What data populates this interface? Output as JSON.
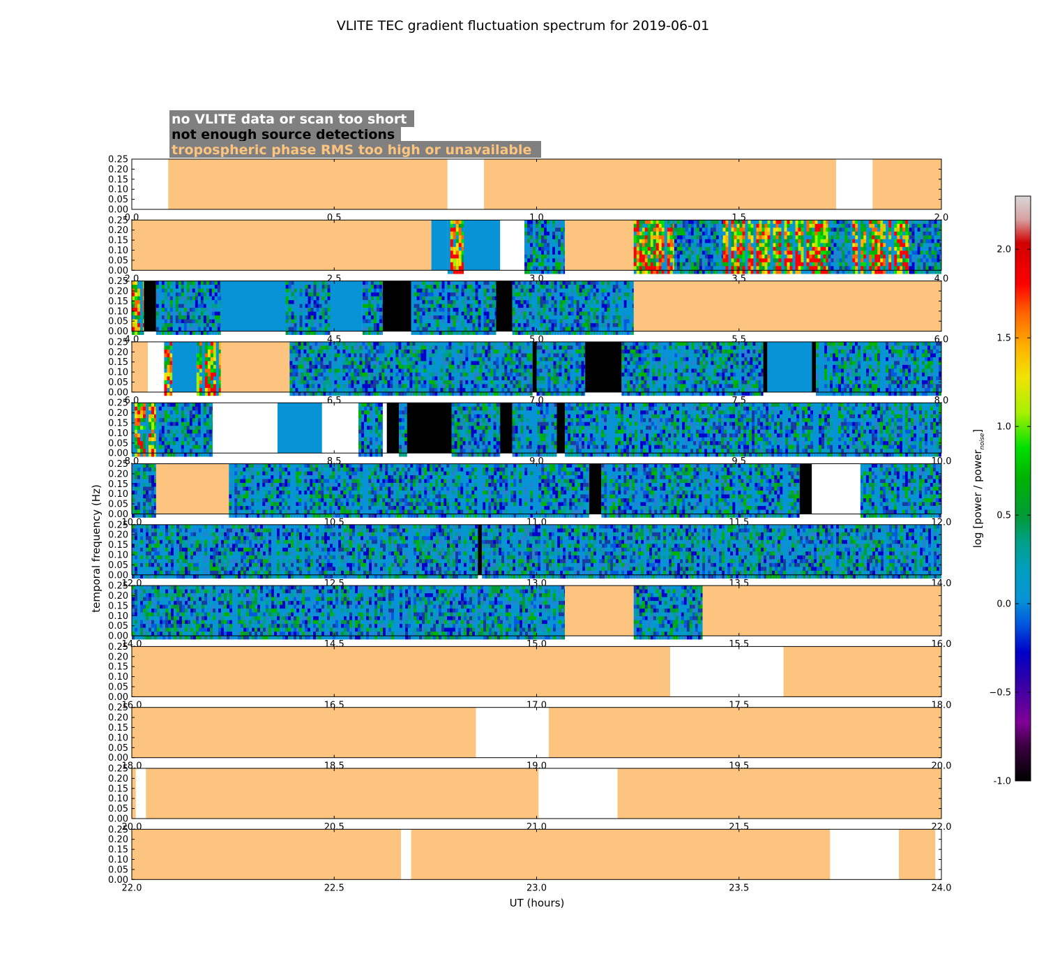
{
  "title": "VLITE TEC gradient fluctuation spectrum for 2019-06-01",
  "legend": {
    "items": [
      {
        "label": "no VLITE data or scan too short",
        "text_color": "#ffffff"
      },
      {
        "label": "not enough source detections",
        "text_color": "#000000"
      },
      {
        "label": "tropospheric phase RMS too high or unavailable",
        "text_color": "#fcc47e"
      }
    ],
    "box_color": "#808080"
  },
  "colors": {
    "no_data": "#ffffff",
    "detections": "#000000",
    "troposphere": "#fcc47e",
    "baseline": "#0893d6"
  },
  "chart_data": {
    "type": "heatmap",
    "title": "VLITE TEC gradient fluctuation spectrum for 2019-06-01",
    "xlabel": "UT (hours)",
    "ylabel": "temporal frequency (Hz)",
    "ylim": [
      0,
      0.25
    ],
    "yticks": [
      "0.00",
      "0.05",
      "0.10",
      "0.15",
      "0.20",
      "0.25"
    ],
    "colorbar": {
      "label": "log [power / power",
      "label_sub": "noise",
      "label_end": "]",
      "range": [
        -1.0,
        2.3
      ],
      "ticks": [
        "-1.0",
        "−0.5",
        "0.0",
        "0.5",
        "1.0",
        "1.5",
        "2.0"
      ],
      "tick_values": [
        -1.0,
        -0.5,
        0.0,
        0.5,
        1.0,
        1.5,
        2.0
      ]
    },
    "panels": [
      {
        "range": [
          0,
          2
        ],
        "ticks": [
          "0.0",
          "0.5",
          "1.0",
          "1.5",
          "2.0"
        ],
        "segments": [
          [
            0.0,
            0.09,
            "W"
          ],
          [
            0.09,
            0.78,
            "O"
          ],
          [
            0.78,
            0.87,
            "W"
          ],
          [
            0.87,
            1.74,
            "O"
          ],
          [
            1.74,
            1.83,
            "W"
          ],
          [
            1.83,
            2.0,
            "O"
          ]
        ]
      },
      {
        "range": [
          2,
          4
        ],
        "ticks": [
          "2.0",
          "2.5",
          "3.0",
          "3.5",
          "4.0"
        ],
        "segments": [
          [
            2.0,
            2.74,
            "O"
          ],
          [
            2.74,
            2.78,
            "B"
          ],
          [
            2.78,
            2.82,
            "H"
          ],
          [
            2.82,
            2.91,
            "B"
          ],
          [
            2.91,
            2.97,
            "W"
          ],
          [
            2.97,
            3.07,
            "N"
          ],
          [
            3.07,
            3.24,
            "O"
          ],
          [
            3.24,
            3.34,
            "H"
          ],
          [
            3.34,
            3.46,
            "N"
          ],
          [
            3.46,
            3.72,
            "H"
          ],
          [
            3.72,
            3.78,
            "N"
          ],
          [
            3.78,
            3.92,
            "H"
          ],
          [
            3.92,
            4.0,
            "N"
          ]
        ]
      },
      {
        "range": [
          4,
          6
        ],
        "ticks": [
          "4.0",
          "4.5",
          "5.0",
          "5.5",
          "6.0"
        ],
        "segments": [
          [
            4.0,
            4.03,
            "M"
          ],
          [
            4.03,
            4.06,
            "K"
          ],
          [
            4.06,
            4.22,
            "N"
          ],
          [
            4.22,
            4.38,
            "B"
          ],
          [
            4.38,
            4.49,
            "N"
          ],
          [
            4.49,
            4.57,
            "B"
          ],
          [
            4.57,
            4.62,
            "N"
          ],
          [
            4.62,
            4.69,
            "K"
          ],
          [
            4.69,
            4.9,
            "N"
          ],
          [
            4.9,
            4.94,
            "K"
          ],
          [
            4.94,
            5.24,
            "N"
          ],
          [
            5.24,
            6.0,
            "O"
          ]
        ]
      },
      {
        "range": [
          6,
          8
        ],
        "ticks": [
          "6.0",
          "6.5",
          "7.0",
          "7.5",
          "8.0"
        ],
        "segments": [
          [
            6.0,
            6.04,
            "O"
          ],
          [
            6.04,
            6.08,
            "W"
          ],
          [
            6.08,
            6.1,
            "H"
          ],
          [
            6.1,
            6.16,
            "B"
          ],
          [
            6.16,
            6.22,
            "H"
          ],
          [
            6.22,
            6.39,
            "O"
          ],
          [
            6.39,
            6.99,
            "N"
          ],
          [
            6.99,
            7.0,
            "K"
          ],
          [
            7.0,
            7.12,
            "N"
          ],
          [
            7.12,
            7.21,
            "K"
          ],
          [
            7.21,
            7.56,
            "N"
          ],
          [
            7.56,
            7.57,
            "K"
          ],
          [
            7.57,
            7.68,
            "B"
          ],
          [
            7.68,
            7.69,
            "K"
          ],
          [
            7.69,
            8.0,
            "N"
          ]
        ]
      },
      {
        "range": [
          8,
          10
        ],
        "ticks": [
          "8.0",
          "8.5",
          "9.0",
          "9.5",
          "10.0"
        ],
        "segments": [
          [
            8.0,
            8.06,
            "H"
          ],
          [
            8.06,
            8.2,
            "N"
          ],
          [
            8.2,
            8.36,
            "W"
          ],
          [
            8.36,
            8.47,
            "B"
          ],
          [
            8.47,
            8.56,
            "W"
          ],
          [
            8.56,
            8.62,
            "N"
          ],
          [
            8.62,
            8.63,
            "W"
          ],
          [
            8.63,
            8.66,
            "K"
          ],
          [
            8.66,
            8.68,
            "N"
          ],
          [
            8.68,
            8.79,
            "K"
          ],
          [
            8.79,
            8.91,
            "N"
          ],
          [
            8.91,
            8.94,
            "K"
          ],
          [
            8.94,
            9.05,
            "N"
          ],
          [
            9.05,
            9.07,
            "K"
          ],
          [
            9.07,
            10.0,
            "N"
          ]
        ]
      },
      {
        "range": [
          10,
          12
        ],
        "ticks": [
          "10.0",
          "10.5",
          "11.0",
          "11.5",
          "12.0"
        ],
        "segments": [
          [
            10.0,
            10.06,
            "N"
          ],
          [
            10.06,
            10.24,
            "O"
          ],
          [
            10.24,
            11.13,
            "N"
          ],
          [
            11.13,
            11.16,
            "K"
          ],
          [
            11.16,
            11.65,
            "N"
          ],
          [
            11.65,
            11.68,
            "K"
          ],
          [
            11.68,
            11.8,
            "W"
          ],
          [
            11.8,
            12.0,
            "N"
          ]
        ]
      },
      {
        "range": [
          12,
          14
        ],
        "ticks": [
          "12.0",
          "12.5",
          "13.0",
          "13.5",
          "14.0"
        ],
        "segments": [
          [
            12.0,
            12.855,
            "N"
          ],
          [
            12.855,
            12.865,
            "K"
          ],
          [
            12.865,
            14.0,
            "N"
          ]
        ]
      },
      {
        "range": [
          14,
          16
        ],
        "ticks": [
          "14.0",
          "14.5",
          "15.0",
          "15.5",
          "16.0"
        ],
        "segments": [
          [
            14.0,
            15.07,
            "N"
          ],
          [
            15.07,
            15.24,
            "O"
          ],
          [
            15.24,
            15.41,
            "N"
          ],
          [
            15.41,
            16.0,
            "O"
          ]
        ]
      },
      {
        "range": [
          16,
          18
        ],
        "ticks": [
          "16.0",
          "16.5",
          "17.0",
          "17.5",
          "18.0"
        ],
        "segments": [
          [
            16.0,
            17.33,
            "O"
          ],
          [
            17.33,
            17.61,
            "W"
          ],
          [
            17.61,
            18.0,
            "O"
          ]
        ]
      },
      {
        "range": [
          18,
          20
        ],
        "ticks": [
          "18.0",
          "18.5",
          "19.0",
          "19.5",
          "20.0"
        ],
        "segments": [
          [
            18.0,
            18.85,
            "O"
          ],
          [
            18.85,
            19.03,
            "W"
          ],
          [
            19.03,
            20.0,
            "O"
          ]
        ]
      },
      {
        "range": [
          20,
          22
        ],
        "ticks": [
          "20.0",
          "20.5",
          "21.0",
          "21.5",
          "22.0"
        ],
        "segments": [
          [
            20.0,
            20.01,
            "O"
          ],
          [
            20.01,
            20.035,
            "W"
          ],
          [
            20.035,
            21.005,
            "O"
          ],
          [
            21.005,
            21.2,
            "W"
          ],
          [
            21.2,
            22.0,
            "O"
          ]
        ]
      },
      {
        "range": [
          22,
          24
        ],
        "ticks": [
          "22.0",
          "22.5",
          "23.0",
          "23.5",
          "24.0"
        ],
        "segments": [
          [
            22.0,
            22.665,
            "O"
          ],
          [
            22.665,
            22.69,
            "W"
          ],
          [
            22.69,
            23.725,
            "O"
          ],
          [
            23.725,
            23.895,
            "W"
          ],
          [
            23.895,
            23.985,
            "O"
          ],
          [
            23.985,
            24.0,
            "W"
          ]
        ]
      }
    ]
  }
}
